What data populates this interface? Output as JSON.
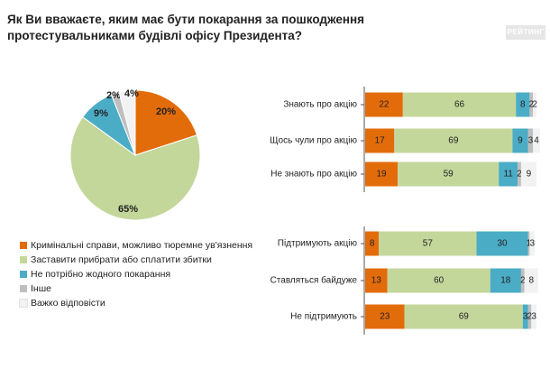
{
  "title": "Як Ви вважаєте, яким має бути покарання за пошкодження протестувальниками будівлі офісу Президента?",
  "brand": "РЕЙТИНГ",
  "chart_data": [
    {
      "type": "pie",
      "labels": [
        "Кримінальні справи, можливо тюремне ув'язнення",
        "Заставити прибрати або сплатити збитки",
        "Не потрібно жодного покарання",
        "Інше",
        "Важко відповісти"
      ],
      "values": [
        20,
        65,
        9,
        2,
        4
      ],
      "value_labels": [
        "20%",
        "65%",
        "9%",
        "2%",
        "4%"
      ],
      "colors": [
        "#e36c0a",
        "#c4d79b",
        "#4bacc6",
        "#bfbfbf",
        "#f2f2f2"
      ]
    },
    {
      "type": "bar",
      "orientation": "horizontal",
      "stacked": true,
      "categories": [
        "Знають про акцію",
        "Щось чули про акцію",
        "Не знають про акцію",
        "Підтримують акцію",
        "Ставляться байдуже",
        "Не підтримують"
      ],
      "series": [
        {
          "name": "Кримінальні справи, можливо тюремне ув'язнення",
          "color": "#e36c0a",
          "values": [
            22,
            17,
            19,
            8,
            13,
            23
          ]
        },
        {
          "name": "Заставити прибрати або сплатити збитки",
          "color": "#c4d79b",
          "values": [
            66,
            69,
            59,
            57,
            60,
            69
          ]
        },
        {
          "name": "Не потрібно жодного покарання",
          "color": "#4bacc6",
          "values": [
            8,
            9,
            11,
            30,
            18,
            3
          ]
        },
        {
          "name": "Інше",
          "color": "#bfbfbf",
          "values": [
            2,
            3,
            2,
            1,
            2,
            2
          ]
        },
        {
          "name": "Важко відповісти",
          "color": "#f2f2f2",
          "values": [
            2,
            4,
            9,
            3,
            8,
            3
          ]
        }
      ],
      "labels": [
        [
          "22",
          "66",
          "8",
          "2",
          "2"
        ],
        [
          "17",
          "69",
          "9",
          "3",
          "4"
        ],
        [
          "19",
          "59",
          "11",
          "2",
          "9"
        ],
        [
          "8",
          "57",
          "30",
          "1",
          "3"
        ],
        [
          "13",
          "60",
          "18",
          "2",
          "8"
        ],
        [
          "23",
          "69",
          "3",
          "2",
          "3"
        ]
      ],
      "xlim": [
        0,
        100
      ]
    }
  ]
}
